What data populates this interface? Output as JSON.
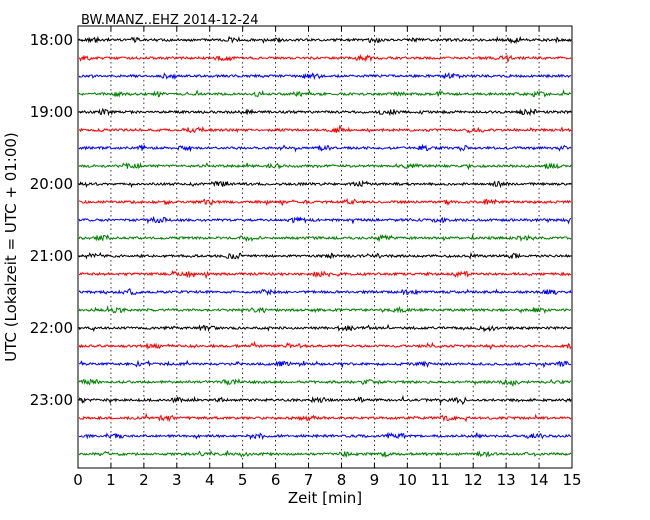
{
  "chart_data": {
    "type": "line",
    "title": "BW.MANZ..EHZ 2014-12-24",
    "xlabel": "Zeit  [min]",
    "ylabel": "UTC (Lokalzeit = UTC + 01:00)",
    "xlim": [
      0,
      15
    ],
    "x_ticks": [
      "0",
      "1",
      "2",
      "3",
      "4",
      "5",
      "6",
      "7",
      "8",
      "9",
      "10",
      "11",
      "12",
      "13",
      "14",
      "15"
    ],
    "y_ticks": [
      {
        "label": "18:00",
        "trace": 0
      },
      {
        "label": "19:00",
        "trace": 4
      },
      {
        "label": "20:00",
        "trace": 8
      },
      {
        "label": "21:00",
        "trace": 12
      },
      {
        "label": "22:00",
        "trace": 16
      },
      {
        "label": "23:00",
        "trace": 20
      }
    ],
    "grid": "vertical-dotted",
    "trace_interval_min": 15,
    "trace_count": 24,
    "trace_colors": [
      "#000000",
      "#ff0000",
      "#0000ff",
      "#008000"
    ]
  }
}
